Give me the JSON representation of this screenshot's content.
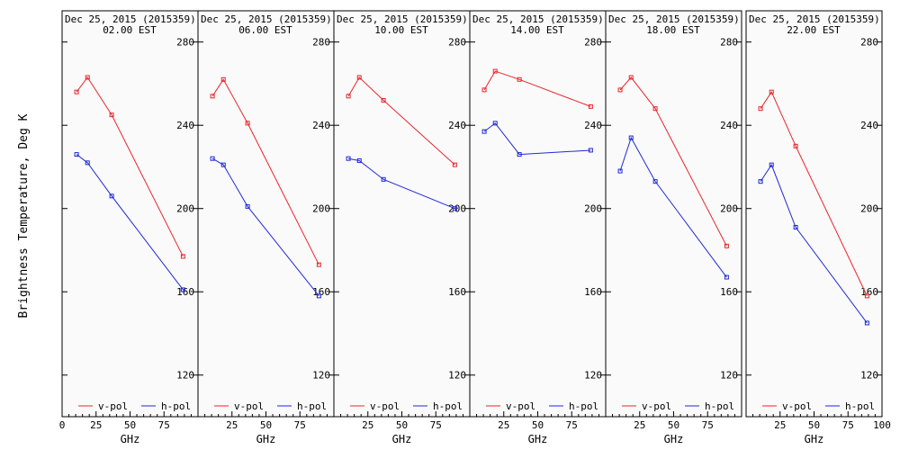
{
  "chart_data": {
    "type": "line",
    "ylabel": "Brightness Temperature, Deg K",
    "xlabel": "GHz",
    "xlim": [
      0,
      100
    ],
    "ylim": [
      100,
      295
    ],
    "x_ticks": [
      "0",
      "25",
      "50",
      "75",
      "100"
    ],
    "y_ticks": [
      "120",
      "160",
      "200",
      "240",
      "280"
    ],
    "background": "#fafafa",
    "series_colors": {
      "v-pol": "#e8262b",
      "h-pol": "#1f2ad8"
    },
    "legend": {
      "placement": "bottom",
      "entries": [
        "v-pol",
        "h-pol"
      ]
    },
    "panels": [
      {
        "title_line1": "Dec 25, 2015 (2015359)",
        "title_line2": "02.00 EST",
        "x": [
          10.65,
          18.7,
          36.5,
          89.0
        ],
        "series": [
          {
            "name": "v-pol",
            "values": [
              256,
              263,
              245,
              177
            ]
          },
          {
            "name": "h-pol",
            "values": [
              226,
              222,
              206,
              161
            ]
          }
        ]
      },
      {
        "title_line1": "Dec 25, 2015 (2015359)",
        "title_line2": "06.00 EST",
        "x": [
          10.65,
          18.7,
          36.5,
          89.0
        ],
        "series": [
          {
            "name": "v-pol",
            "values": [
              254,
              262,
              241,
              173
            ]
          },
          {
            "name": "h-pol",
            "values": [
              224,
              221,
              201,
              158
            ]
          }
        ]
      },
      {
        "title_line1": "Dec 25, 2015 (2015359)",
        "title_line2": "10.00 EST",
        "x": [
          10.65,
          18.7,
          36.5,
          89.0
        ],
        "series": [
          {
            "name": "v-pol",
            "values": [
              254,
              263,
              252,
              221
            ]
          },
          {
            "name": "h-pol",
            "values": [
              224,
              223,
              214,
              200
            ]
          }
        ]
      },
      {
        "title_line1": "Dec 25, 2015 (2015359)",
        "title_line2": "14.00 EST",
        "x": [
          10.65,
          18.7,
          36.5,
          89.0
        ],
        "series": [
          {
            "name": "v-pol",
            "values": [
              257,
              266,
              262,
              249
            ]
          },
          {
            "name": "h-pol",
            "values": [
              237,
              241,
              226,
              228
            ]
          }
        ]
      },
      {
        "title_line1": "Dec 25, 2015 (2015359)",
        "title_line2": "18.00 EST",
        "x": [
          10.65,
          18.7,
          36.5,
          89.0
        ],
        "series": [
          {
            "name": "v-pol",
            "values": [
              257,
              263,
              248,
              182
            ]
          },
          {
            "name": "h-pol",
            "values": [
              218,
              234,
              213,
              167
            ]
          }
        ]
      },
      {
        "title_line1": "Dec 25, 2015 (2015359)",
        "title_line2": "22.00 EST",
        "x": [
          10.65,
          18.7,
          36.5,
          89.0
        ],
        "series": [
          {
            "name": "v-pol",
            "values": [
              248,
              256,
              230,
              158
            ]
          },
          {
            "name": "h-pol",
            "values": [
              213,
              221,
              191,
              145
            ]
          }
        ]
      }
    ]
  }
}
